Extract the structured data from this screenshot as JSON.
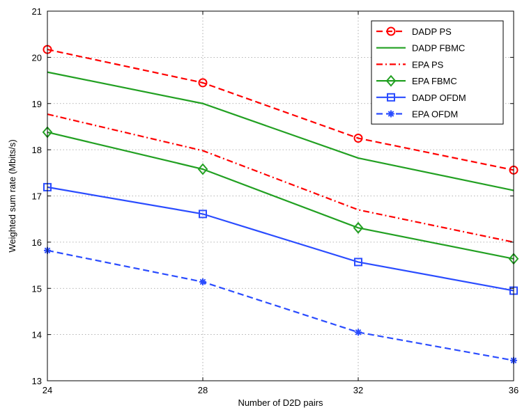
{
  "chart_data": {
    "type": "line",
    "xlabel": "Number of D2D pairs",
    "ylabel": "Weighted sum rate (Mbits/s)",
    "x": [
      24,
      28,
      32,
      36
    ],
    "xlim": [
      24,
      36
    ],
    "ylim": [
      13,
      21
    ],
    "xticks": [
      "24",
      "28",
      "32",
      "36"
    ],
    "yticks": [
      "13",
      "14",
      "15",
      "16",
      "17",
      "18",
      "19",
      "20",
      "21"
    ],
    "grid": true,
    "legend_position": "top-right",
    "series": [
      {
        "name": "DADP PS",
        "values": [
          20.17,
          19.45,
          18.25,
          17.56
        ],
        "color": "#ff0000",
        "dash": "dashed",
        "marker": "circle"
      },
      {
        "name": "DADP FBMC",
        "values": [
          19.68,
          19.0,
          17.82,
          17.12
        ],
        "color": "#22a022",
        "dash": "solid",
        "marker": "none"
      },
      {
        "name": "EPA PS",
        "values": [
          18.77,
          17.98,
          16.7,
          16.0
        ],
        "color": "#ff0000",
        "dash": "dashdot",
        "marker": "none"
      },
      {
        "name": "EPA FBMC",
        "values": [
          18.38,
          17.58,
          16.31,
          15.64
        ],
        "color": "#22a022",
        "dash": "solid",
        "marker": "diamond"
      },
      {
        "name": "DADP OFDM",
        "values": [
          17.19,
          16.61,
          15.57,
          14.95
        ],
        "color": "#2a4cff",
        "dash": "solid",
        "marker": "square"
      },
      {
        "name": "EPA OFDM",
        "values": [
          15.82,
          15.14,
          14.05,
          13.44
        ],
        "color": "#2a4cff",
        "dash": "dashed",
        "marker": "star"
      }
    ]
  }
}
